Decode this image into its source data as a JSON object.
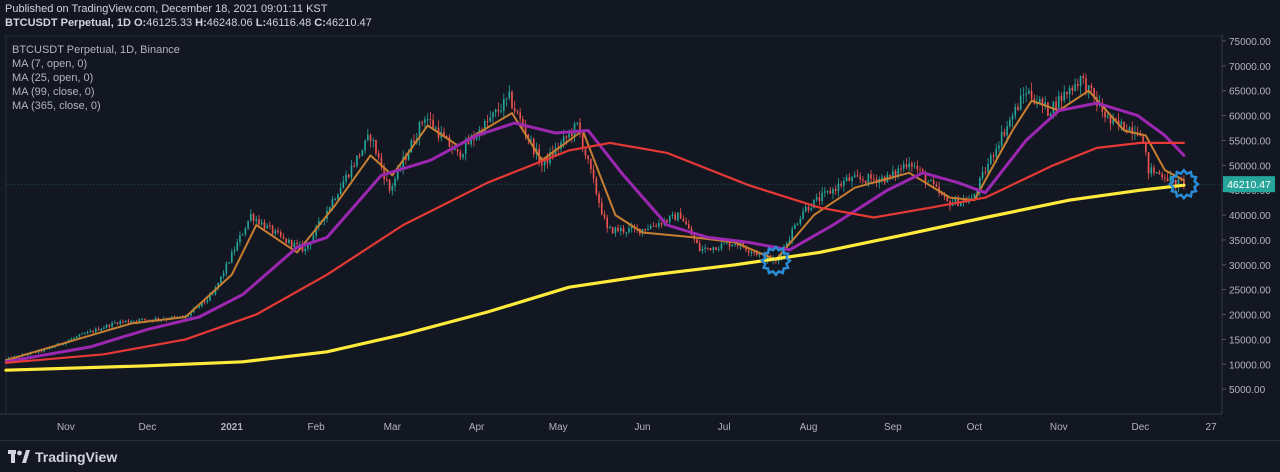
{
  "header": {
    "published": "Published on TradingView.com, December 18, 2021 09:01:11 KST",
    "symbol_line": "BTCUSDT Perpetual, 1D",
    "o_label": "O:",
    "o_value": "46125.33",
    "h_label": "H:",
    "h_value": "46248.06",
    "l_label": "L:",
    "l_value": "46116.48",
    "c_label": "C:",
    "c_value": "46210.47"
  },
  "legend": {
    "title": "BTCUSDT Perpetual, 1D, Binance",
    "ma7": "MA (7, open, 0)",
    "ma25": "MA (25, open, 0)",
    "ma99": "MA (99, close, 0)",
    "ma365": "MA (365, close, 0)"
  },
  "footer": {
    "brand": "TradingView"
  },
  "colors": {
    "background": "#131722",
    "up": "#26a69a",
    "down": "#ef5350",
    "ma7": "#c67f31",
    "ma25": "#9c27b0",
    "ma99": "#e53935",
    "ma365": "#ffeb3b",
    "marker": "#2b8cd6"
  },
  "chart_data": {
    "type": "line",
    "ylim": [
      0,
      76000
    ],
    "y_ticks": [
      "75000.00",
      "70000.00",
      "65000.00",
      "60000.00",
      "55000.00",
      "50000.00",
      "45000.00",
      "40000.00",
      "35000.00",
      "30000.00",
      "25000.00",
      "20000.00",
      "15000.00",
      "10000.00",
      "5000.00"
    ],
    "y_tick_values": [
      75000,
      70000,
      65000,
      60000,
      55000,
      50000,
      45000,
      40000,
      35000,
      30000,
      25000,
      20000,
      15000,
      10000,
      5000
    ],
    "x_ticks": [
      "Nov",
      "Dec",
      "2021",
      "Feb",
      "Mar",
      "Apr",
      "May",
      "Jun",
      "Jul",
      "Aug",
      "Sep",
      "Oct",
      "Nov",
      "Dec",
      "27"
    ],
    "x_tick_dates": [
      "2020-11-01",
      "2020-12-01",
      "2021-01-01",
      "2021-02-01",
      "2021-03-01",
      "2021-04-01",
      "2021-05-01",
      "2021-06-01",
      "2021-07-01",
      "2021-08-01",
      "2021-09-01",
      "2021-10-01",
      "2021-11-01",
      "2021-12-01",
      "2021-12-27"
    ],
    "x_range": [
      "2020-10-10",
      "2021-12-31"
    ],
    "last_price": "46210.47",
    "last_price_value": 46210.47,
    "close_anchors": [
      [
        "2020-10-10",
        11000
      ],
      [
        "2020-10-25",
        13000
      ],
      [
        "2020-11-05",
        15500
      ],
      [
        "2020-11-20",
        18500
      ],
      [
        "2020-12-01",
        19000
      ],
      [
        "2020-12-15",
        19500
      ],
      [
        "2020-12-25",
        24000
      ],
      [
        "2021-01-08",
        40000
      ],
      [
        "2021-01-20",
        35000
      ],
      [
        "2021-01-28",
        33000
      ],
      [
        "2021-02-08",
        44000
      ],
      [
        "2021-02-21",
        56000
      ],
      [
        "2021-02-28",
        45000
      ],
      [
        "2021-03-13",
        60000
      ],
      [
        "2021-03-25",
        52000
      ],
      [
        "2021-04-13",
        63500
      ],
      [
        "2021-04-25",
        50000
      ],
      [
        "2021-05-08",
        58000
      ],
      [
        "2021-05-19",
        37000
      ],
      [
        "2021-05-31",
        37000
      ],
      [
        "2021-06-15",
        40000
      ],
      [
        "2021-06-22",
        33000
      ],
      [
        "2021-07-05",
        34500
      ],
      [
        "2021-07-20",
        30500
      ],
      [
        "2021-07-30",
        41000
      ],
      [
        "2021-08-15",
        47000
      ],
      [
        "2021-08-31",
        47500
      ],
      [
        "2021-09-07",
        51000
      ],
      [
        "2021-09-21",
        42500
      ],
      [
        "2021-09-30",
        43000
      ],
      [
        "2021-10-10",
        55000
      ],
      [
        "2021-10-20",
        65000
      ],
      [
        "2021-10-28",
        61000
      ],
      [
        "2021-11-09",
        67500
      ],
      [
        "2021-11-20",
        58500
      ],
      [
        "2021-12-01",
        57000
      ],
      [
        "2021-12-04",
        49000
      ],
      [
        "2021-12-10",
        48000
      ],
      [
        "2021-12-13",
        46500
      ],
      [
        "2021-12-17",
        46210
      ]
    ],
    "series": [
      {
        "name": "MA (7, open, 0)",
        "color": "#c67f31",
        "values": [
          [
            "2020-10-10",
            10800
          ],
          [
            "2020-11-05",
            15000
          ],
          [
            "2020-11-25",
            18200
          ],
          [
            "2020-12-15",
            19500
          ],
          [
            "2021-01-01",
            28000
          ],
          [
            "2021-01-10",
            38000
          ],
          [
            "2021-01-25",
            32500
          ],
          [
            "2021-02-08",
            42000
          ],
          [
            "2021-02-21",
            52000
          ],
          [
            "2021-03-01",
            48000
          ],
          [
            "2021-03-14",
            58000
          ],
          [
            "2021-03-25",
            54000
          ],
          [
            "2021-04-14",
            60500
          ],
          [
            "2021-04-25",
            51000
          ],
          [
            "2021-05-10",
            57000
          ],
          [
            "2021-05-22",
            40000
          ],
          [
            "2021-06-01",
            36500
          ],
          [
            "2021-06-20",
            35500
          ],
          [
            "2021-07-05",
            34500
          ],
          [
            "2021-07-20",
            31000
          ],
          [
            "2021-08-03",
            40000
          ],
          [
            "2021-08-18",
            45500
          ],
          [
            "2021-09-07",
            48500
          ],
          [
            "2021-09-22",
            43500
          ],
          [
            "2021-10-01",
            43000
          ],
          [
            "2021-10-15",
            57000
          ],
          [
            "2021-10-22",
            63000
          ],
          [
            "2021-11-01",
            61000
          ],
          [
            "2021-11-12",
            65000
          ],
          [
            "2021-11-25",
            57000
          ],
          [
            "2021-12-03",
            56000
          ],
          [
            "2021-12-10",
            49000
          ],
          [
            "2021-12-17",
            47000
          ]
        ]
      },
      {
        "name": "MA (25, open, 0)",
        "color": "#9c27b0",
        "values": [
          [
            "2020-10-10",
            10500
          ],
          [
            "2020-11-10",
            13500
          ],
          [
            "2020-12-01",
            17000
          ],
          [
            "2020-12-20",
            19500
          ],
          [
            "2021-01-05",
            24000
          ],
          [
            "2021-01-25",
            33500
          ],
          [
            "2021-02-05",
            35500
          ],
          [
            "2021-02-25",
            48000
          ],
          [
            "2021-03-15",
            51000
          ],
          [
            "2021-04-01",
            56000
          ],
          [
            "2021-04-15",
            58500
          ],
          [
            "2021-04-30",
            56500
          ],
          [
            "2021-05-12",
            57000
          ],
          [
            "2021-05-25",
            48000
          ],
          [
            "2021-06-10",
            38000
          ],
          [
            "2021-06-25",
            35500
          ],
          [
            "2021-07-10",
            34500
          ],
          [
            "2021-07-25",
            33000
          ],
          [
            "2021-08-10",
            38000
          ],
          [
            "2021-08-30",
            45000
          ],
          [
            "2021-09-12",
            48500
          ],
          [
            "2021-09-25",
            46500
          ],
          [
            "2021-10-05",
            44500
          ],
          [
            "2021-10-20",
            55000
          ],
          [
            "2021-11-01",
            61000
          ],
          [
            "2021-11-15",
            62500
          ],
          [
            "2021-11-30",
            60000
          ],
          [
            "2021-12-10",
            56000
          ],
          [
            "2021-12-17",
            52000
          ]
        ]
      },
      {
        "name": "MA (99, close, 0)",
        "color": "#e53935",
        "values": [
          [
            "2020-10-10",
            10300
          ],
          [
            "2020-11-15",
            12000
          ],
          [
            "2020-12-15",
            15000
          ],
          [
            "2021-01-10",
            20000
          ],
          [
            "2021-02-05",
            28000
          ],
          [
            "2021-03-05",
            38000
          ],
          [
            "2021-04-05",
            46500
          ],
          [
            "2021-05-05",
            53000
          ],
          [
            "2021-05-20",
            54500
          ],
          [
            "2021-06-10",
            52500
          ],
          [
            "2021-07-10",
            46000
          ],
          [
            "2021-08-05",
            41500
          ],
          [
            "2021-08-25",
            39500
          ],
          [
            "2021-09-15",
            41500
          ],
          [
            "2021-10-05",
            43500
          ],
          [
            "2021-10-30",
            50000
          ],
          [
            "2021-11-15",
            53500
          ],
          [
            "2021-12-01",
            54500
          ],
          [
            "2021-12-17",
            54500
          ]
        ]
      },
      {
        "name": "MA (365, close, 0)",
        "color": "#ffeb3b",
        "values": [
          [
            "2020-10-10",
            8800
          ],
          [
            "2020-12-01",
            9700
          ],
          [
            "2021-01-05",
            10500
          ],
          [
            "2021-02-05",
            12500
          ],
          [
            "2021-03-05",
            16000
          ],
          [
            "2021-04-05",
            20500
          ],
          [
            "2021-05-05",
            25500
          ],
          [
            "2021-06-05",
            28000
          ],
          [
            "2021-07-05",
            30000
          ],
          [
            "2021-08-05",
            32500
          ],
          [
            "2021-09-05",
            36000
          ],
          [
            "2021-10-05",
            39500
          ],
          [
            "2021-11-05",
            43000
          ],
          [
            "2021-12-01",
            45000
          ],
          [
            "2021-12-17",
            46000
          ]
        ]
      }
    ],
    "markers": [
      [
        "2021-07-20",
        30800
      ],
      [
        "2021-12-17",
        46200
      ]
    ]
  }
}
